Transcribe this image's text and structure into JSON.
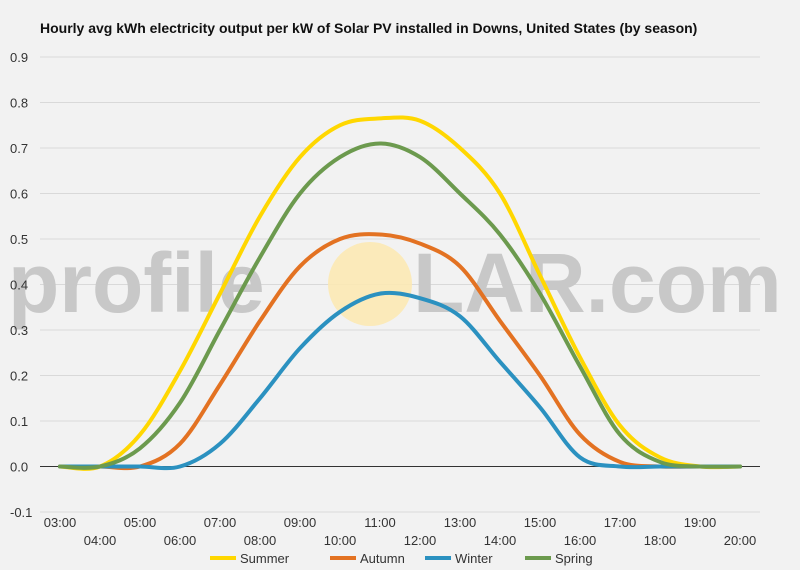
{
  "chart_data": {
    "type": "line",
    "title": "Hourly avg kWh electricity output per kW of Solar PV installed in Downs, United States (by season)",
    "watermark": {
      "left": "profile",
      "right": "LAR.com"
    },
    "xlabel": "",
    "ylabel": "",
    "ylim": [
      -0.1,
      0.9
    ],
    "yticks": [
      "-0.1",
      "0.0",
      "0.1",
      "0.2",
      "0.3",
      "0.4",
      "0.5",
      "0.6",
      "0.7",
      "0.8",
      "0.9"
    ],
    "x": [
      3,
      4,
      5,
      6,
      7,
      8,
      9,
      10,
      11,
      12,
      13,
      14,
      15,
      16,
      17,
      18,
      19,
      20
    ],
    "xticks": [
      "03:00",
      "04:00",
      "05:00",
      "06:00",
      "07:00",
      "08:00",
      "09:00",
      "10:00",
      "11:00",
      "12:00",
      "13:00",
      "14:00",
      "15:00",
      "16:00",
      "17:00",
      "18:00",
      "19:00",
      "20:00"
    ],
    "grid": true,
    "legend_position": "bottom",
    "series": [
      {
        "name": "Summer",
        "color": "#ffd700",
        "values": [
          0.0,
          0.0,
          0.07,
          0.21,
          0.38,
          0.55,
          0.68,
          0.75,
          0.765,
          0.76,
          0.7,
          0.6,
          0.42,
          0.24,
          0.09,
          0.02,
          0.0,
          0.0
        ]
      },
      {
        "name": "Autumn",
        "color": "#e37222",
        "values": [
          0.0,
          0.0,
          0.0,
          0.05,
          0.18,
          0.32,
          0.44,
          0.5,
          0.51,
          0.49,
          0.44,
          0.32,
          0.2,
          0.07,
          0.01,
          0.0,
          0.0,
          0.0
        ]
      },
      {
        "name": "Winter",
        "color": "#2b91c0",
        "values": [
          0.0,
          0.0,
          0.0,
          0.0,
          0.05,
          0.15,
          0.26,
          0.34,
          0.38,
          0.37,
          0.33,
          0.23,
          0.13,
          0.02,
          0.0,
          0.0,
          0.0,
          0.0
        ]
      },
      {
        "name": "Spring",
        "color": "#6c9a4e",
        "values": [
          0.0,
          0.0,
          0.04,
          0.14,
          0.3,
          0.46,
          0.6,
          0.68,
          0.71,
          0.68,
          0.6,
          0.51,
          0.38,
          0.22,
          0.07,
          0.01,
          0.0,
          0.0
        ]
      }
    ]
  }
}
